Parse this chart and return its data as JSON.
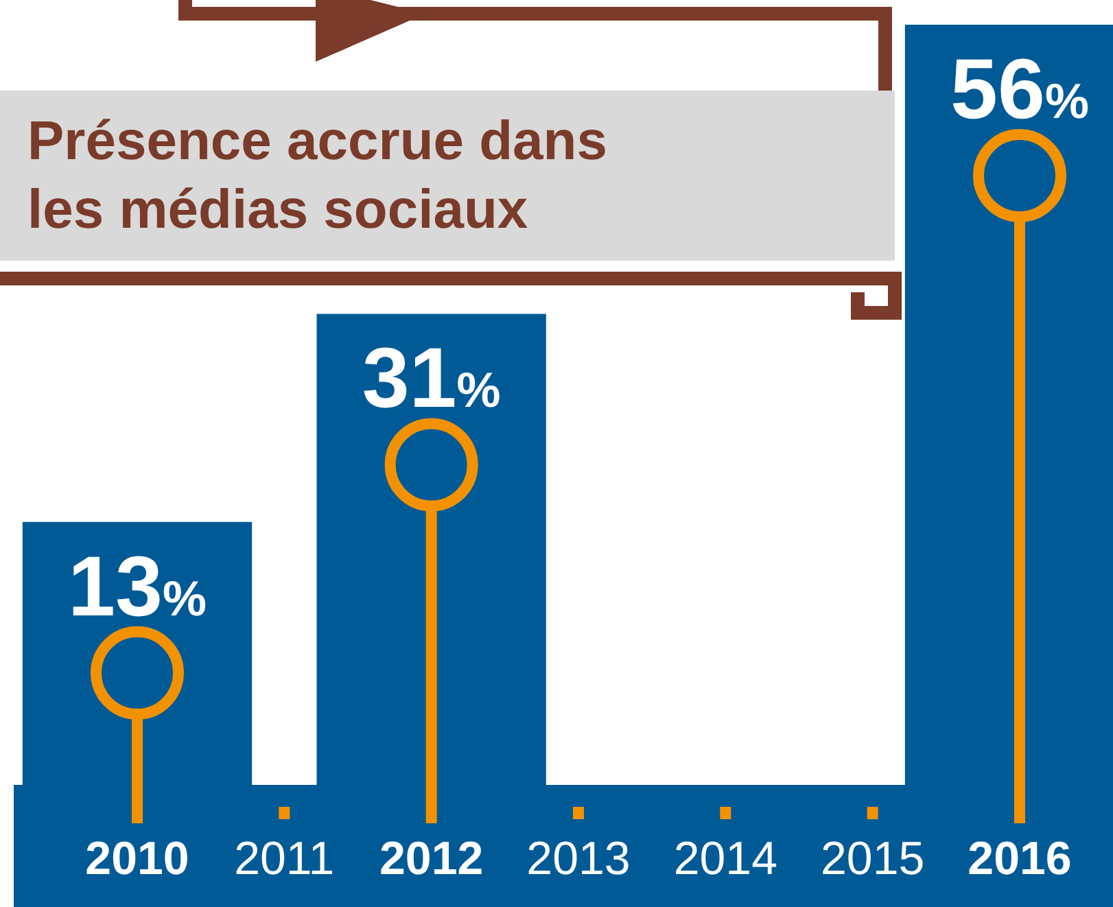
{
  "chart_data": {
    "type": "lollipop",
    "title": "Présence accrue dans les médias sociaux",
    "categories": [
      "2010",
      "2011",
      "2012",
      "2013",
      "2014",
      "2015",
      "2016"
    ],
    "values": [
      13,
      null,
      31,
      null,
      null,
      null,
      56
    ],
    "value_labels": [
      "13%",
      null,
      "31%",
      null,
      null,
      null,
      "56%"
    ],
    "color": "#f39200"
  }
}
